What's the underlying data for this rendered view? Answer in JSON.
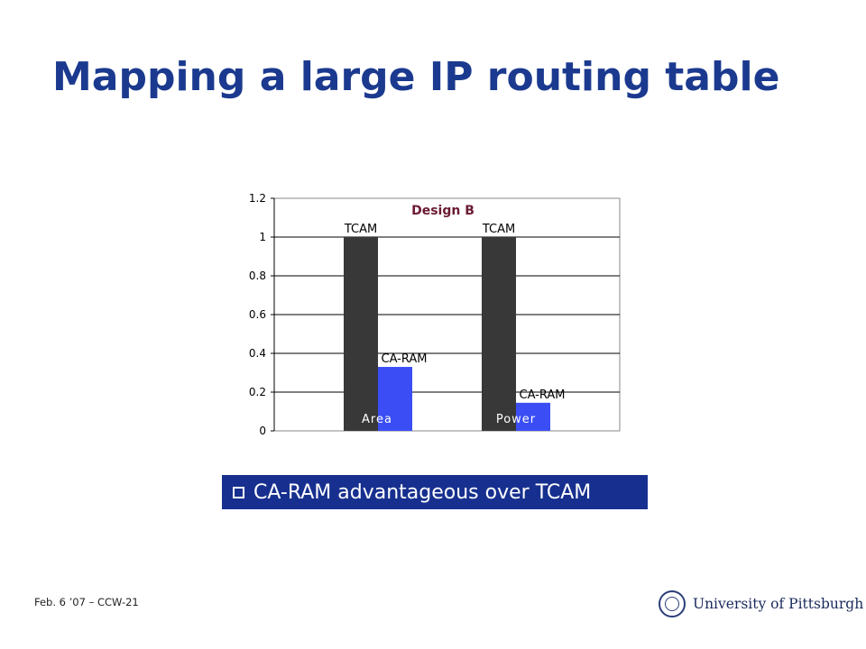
{
  "slide": {
    "title": "Mapping a large IP routing table",
    "callout": "CA-RAM advantageous over TCAM",
    "footer": "Feb. 6 ’07 – CCW-21",
    "logo_text": "University of Pittsburgh"
  },
  "colors": {
    "title": "#1b3a8f",
    "callout_bg": "#17308f",
    "tcam_bar": "#383838",
    "caram_bar": "#3b4ef5",
    "chart_title": "#6b1a33"
  },
  "chart_data": {
    "type": "bar",
    "title": "Design B",
    "categories": [
      "Area",
      "Power"
    ],
    "series": [
      {
        "name": "TCAM",
        "values": [
          1.0,
          1.0
        ]
      },
      {
        "name": "CA-RAM",
        "values": [
          0.33,
          0.145
        ]
      }
    ],
    "bar_labels": [
      [
        "TCAM",
        "TCAM"
      ],
      [
        "CA-RAM",
        "CA-RAM"
      ]
    ],
    "ylim": [
      0,
      1.2
    ],
    "yticks": [
      0,
      0.2,
      0.4,
      0.6,
      0.8,
      1,
      1.2
    ],
    "ytick_labels": [
      "0",
      "0.2",
      "0.4",
      "0.6",
      "0.8",
      "1",
      "1.2"
    ],
    "grid": true,
    "legend": "none"
  }
}
